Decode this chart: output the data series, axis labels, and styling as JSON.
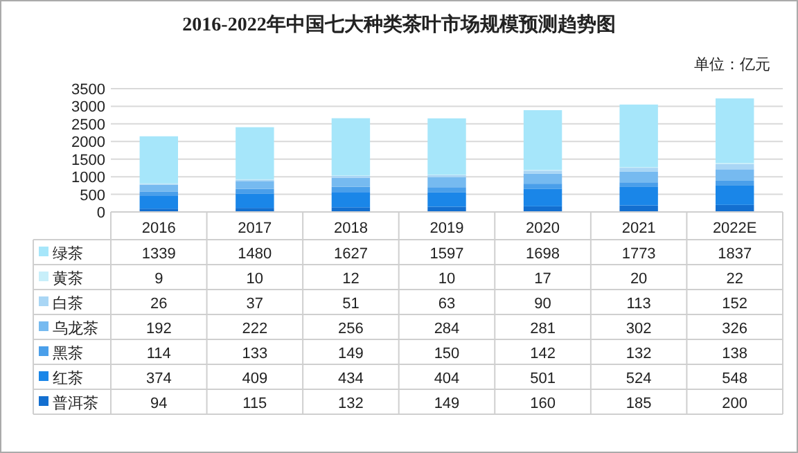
{
  "chart_data": {
    "type": "bar",
    "title": "2016-2022年中国七大种类茶叶市场规模预测趋势图",
    "stacked": true,
    "data_labels": true,
    "legend": "bottom left",
    "grid": "y",
    "annotations": [
      "单位：亿元"
    ],
    "categories": [
      "2016",
      "2017",
      "2018",
      "2019",
      "2020",
      "2021",
      "2022E"
    ],
    "ylim": [
      0,
      3500
    ],
    "yticks": [
      0,
      500,
      1000,
      1500,
      2000,
      2500,
      3000,
      3500
    ],
    "series": [
      {
        "name": "普洱茶",
        "color": "#136fd0",
        "values": [
          94,
          115,
          132,
          149,
          160,
          185,
          200
        ]
      },
      {
        "name": "红茶",
        "color": "#1a86e8",
        "values": [
          374,
          409,
          434,
          404,
          501,
          524,
          548
        ]
      },
      {
        "name": "黑茶",
        "color": "#4a9fea",
        "values": [
          114,
          133,
          149,
          150,
          142,
          132,
          138
        ]
      },
      {
        "name": "乌龙茶",
        "color": "#76baf0",
        "values": [
          192,
          222,
          256,
          284,
          281,
          302,
          326
        ]
      },
      {
        "name": "白茶",
        "color": "#a9d6f5",
        "values": [
          26,
          37,
          51,
          63,
          90,
          113,
          152
        ]
      },
      {
        "name": "黄茶",
        "color": "#c8effa",
        "values": [
          9,
          10,
          12,
          10,
          17,
          20,
          22
        ]
      },
      {
        "name": "绿茶",
        "color": "#a6e6fa",
        "values": [
          1339,
          1480,
          1627,
          1597,
          1698,
          1773,
          1837
        ]
      }
    ]
  }
}
